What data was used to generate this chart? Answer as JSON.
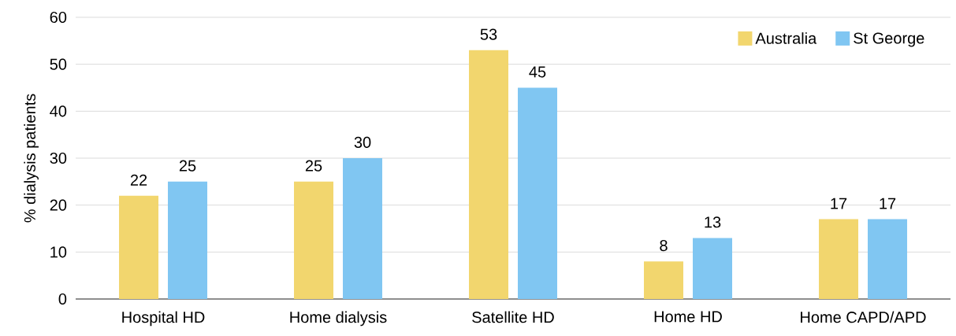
{
  "chart_data": {
    "type": "bar",
    "ylabel": "% dialysis patients",
    "categories": [
      "Hospital HD",
      "Home dialysis",
      "Satellite HD",
      "Home HD",
      "Home CAPD/APD"
    ],
    "series": [
      {
        "name": "Australia",
        "color": "#f2d66e",
        "values": [
          22,
          25,
          53,
          8,
          17
        ]
      },
      {
        "name": "St George",
        "color": "#80c6f2",
        "values": [
          25,
          30,
          45,
          13,
          17
        ]
      }
    ],
    "ylim": [
      0,
      60
    ],
    "yticks": [
      0,
      10,
      20,
      30,
      40,
      50,
      60
    ],
    "grid": "y",
    "legend": "top right",
    "data_labels": true
  }
}
